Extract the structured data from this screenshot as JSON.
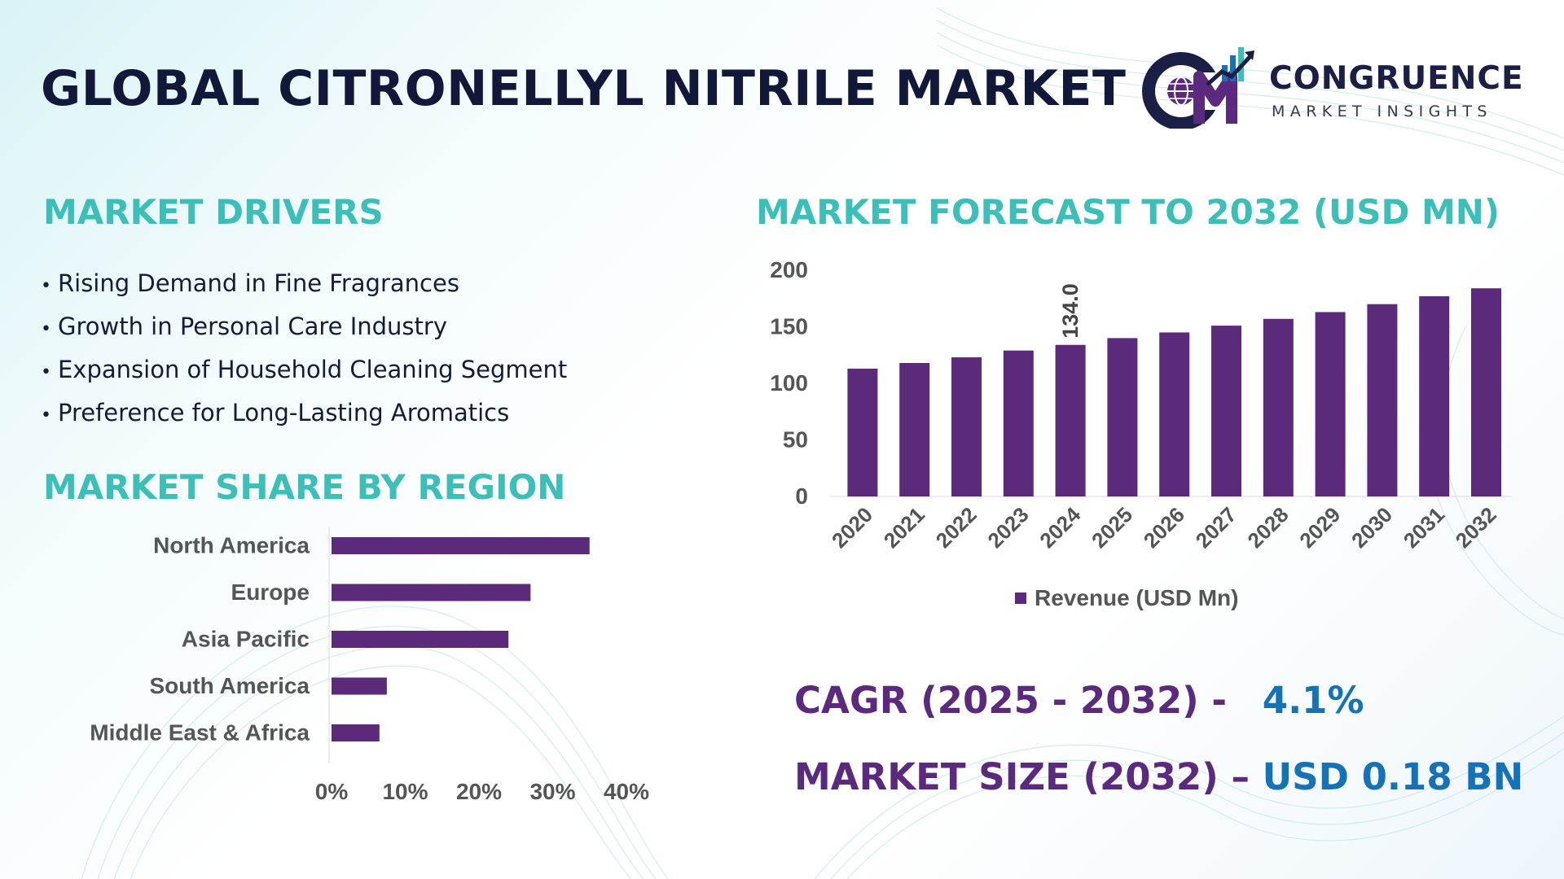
{
  "header": {
    "title": "GLOBAL CITRONELLYL NITRILE MARKET",
    "logo_name": "CONGRUENCE",
    "logo_sub": "MARKET INSIGHTS",
    "logo_icon": "cm-globe-growth-logo"
  },
  "drivers": {
    "title": "MARKET DRIVERS",
    "items": [
      "Rising Demand in Fine Fragrances",
      "Growth in Personal Care Industry",
      "Expansion of Household Cleaning Segment",
      "Preference for Long-Lasting Aromatics"
    ]
  },
  "region": {
    "title": "MARKET SHARE BY REGION"
  },
  "forecast": {
    "title": "MARKET FORECAST TO 2032 (USD MN)"
  },
  "stats": {
    "cagr_label": "CAGR (2025 - 2032) -",
    "cagr_value": "4.1%",
    "size_label": "MARKET SIZE (2032) –",
    "size_value": "USD 0.18 BN"
  },
  "colors": {
    "bar": "#5c2a7a",
    "section_title": "#3cbfb9",
    "stat_label": "#5b2a7e",
    "stat_value": "#1572b6",
    "title": "#12183a"
  },
  "chart_data": [
    {
      "type": "bar",
      "orientation": "horizontal",
      "categories": [
        "North America",
        "Europe",
        "Asia Pacific",
        "South America",
        "Middle East & Africa"
      ],
      "values": [
        35,
        27,
        24,
        7.5,
        6.5
      ],
      "x_ticks": [
        "0%",
        "10%",
        "20%",
        "30%",
        "40%"
      ],
      "xlim": [
        0,
        40
      ],
      "grid": false,
      "legend": false
    },
    {
      "type": "bar",
      "categories": [
        "2020",
        "2021",
        "2022",
        "2023",
        "2024",
        "2025",
        "2026",
        "2027",
        "2028",
        "2029",
        "2030",
        "2031",
        "2032"
      ],
      "series": [
        {
          "name": "Revenue (USD Mn)",
          "values": [
            113,
            118,
            123,
            129,
            134.0,
            140,
            145,
            151,
            157,
            163,
            170,
            177,
            184
          ]
        }
      ],
      "annotation": {
        "category": "2024",
        "label": "134.0"
      },
      "y_ticks": [
        "0",
        "50",
        "100",
        "150",
        "200"
      ],
      "ylim": [
        0,
        200
      ],
      "grid": false,
      "legend_position": "bottom"
    }
  ]
}
